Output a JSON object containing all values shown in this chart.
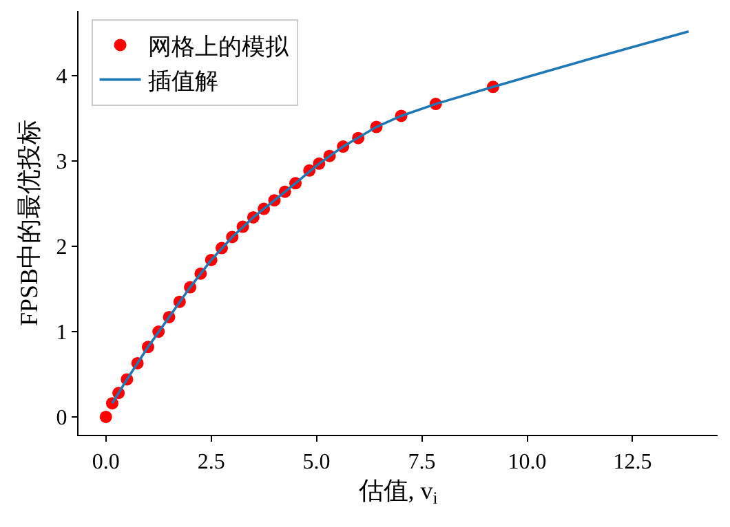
{
  "chart_data": {
    "type": "scatter",
    "xlabel": "估值, v$_{i}$",
    "ylabel": "FPSB中的最优投标",
    "xlim": [
      -0.65,
      14.52
    ],
    "ylim": [
      -0.21,
      4.76
    ],
    "xticks": [
      {
        "value": 0,
        "label": "0.0"
      },
      2.5,
      {
        "value": 5,
        "label": "5.0"
      },
      7.5,
      {
        "value": 10,
        "label": "10.0"
      },
      12.5
    ],
    "yticks": [
      0,
      1,
      2,
      3,
      4
    ],
    "grid": false,
    "legend": "top left",
    "series": [
      {
        "name": "网格上的模拟",
        "type": "scatter",
        "color": "#ff0000",
        "marker": "circle",
        "x": [
          0,
          0.15,
          0.3,
          0.5,
          0.75,
          1.0,
          1.25,
          1.5,
          1.75,
          2.0,
          2.25,
          2.5,
          2.75,
          3.0,
          3.25,
          3.5,
          3.75,
          4.0,
          4.25,
          4.5,
          4.83,
          5.06,
          5.31,
          5.63,
          5.99,
          6.42,
          7.01,
          7.83,
          9.19
        ],
        "values": [
          0,
          0.16,
          0.28,
          0.44,
          0.63,
          0.82,
          1.0,
          1.17,
          1.35,
          1.52,
          1.68,
          1.84,
          1.98,
          2.11,
          2.23,
          2.34,
          2.44,
          2.54,
          2.64,
          2.74,
          2.89,
          2.97,
          3.06,
          3.17,
          3.27,
          3.4,
          3.53,
          3.67,
          3.87
        ]
      },
      {
        "name": "插值解",
        "type": "line",
        "color": "#1f77b4",
        "line_style": "solid",
        "x": [
          0.15,
          0.5,
          1.0,
          1.5,
          2.0,
          2.5,
          3.0,
          3.5,
          4.0,
          4.5,
          5.06,
          5.63,
          6.42,
          7.01,
          7.83,
          9.19,
          11.5,
          13.83
        ],
        "values": [
          0.16,
          0.44,
          0.82,
          1.17,
          1.52,
          1.84,
          2.11,
          2.34,
          2.54,
          2.74,
          2.97,
          3.17,
          3.4,
          3.53,
          3.67,
          3.87,
          4.2,
          4.52
        ]
      }
    ]
  }
}
